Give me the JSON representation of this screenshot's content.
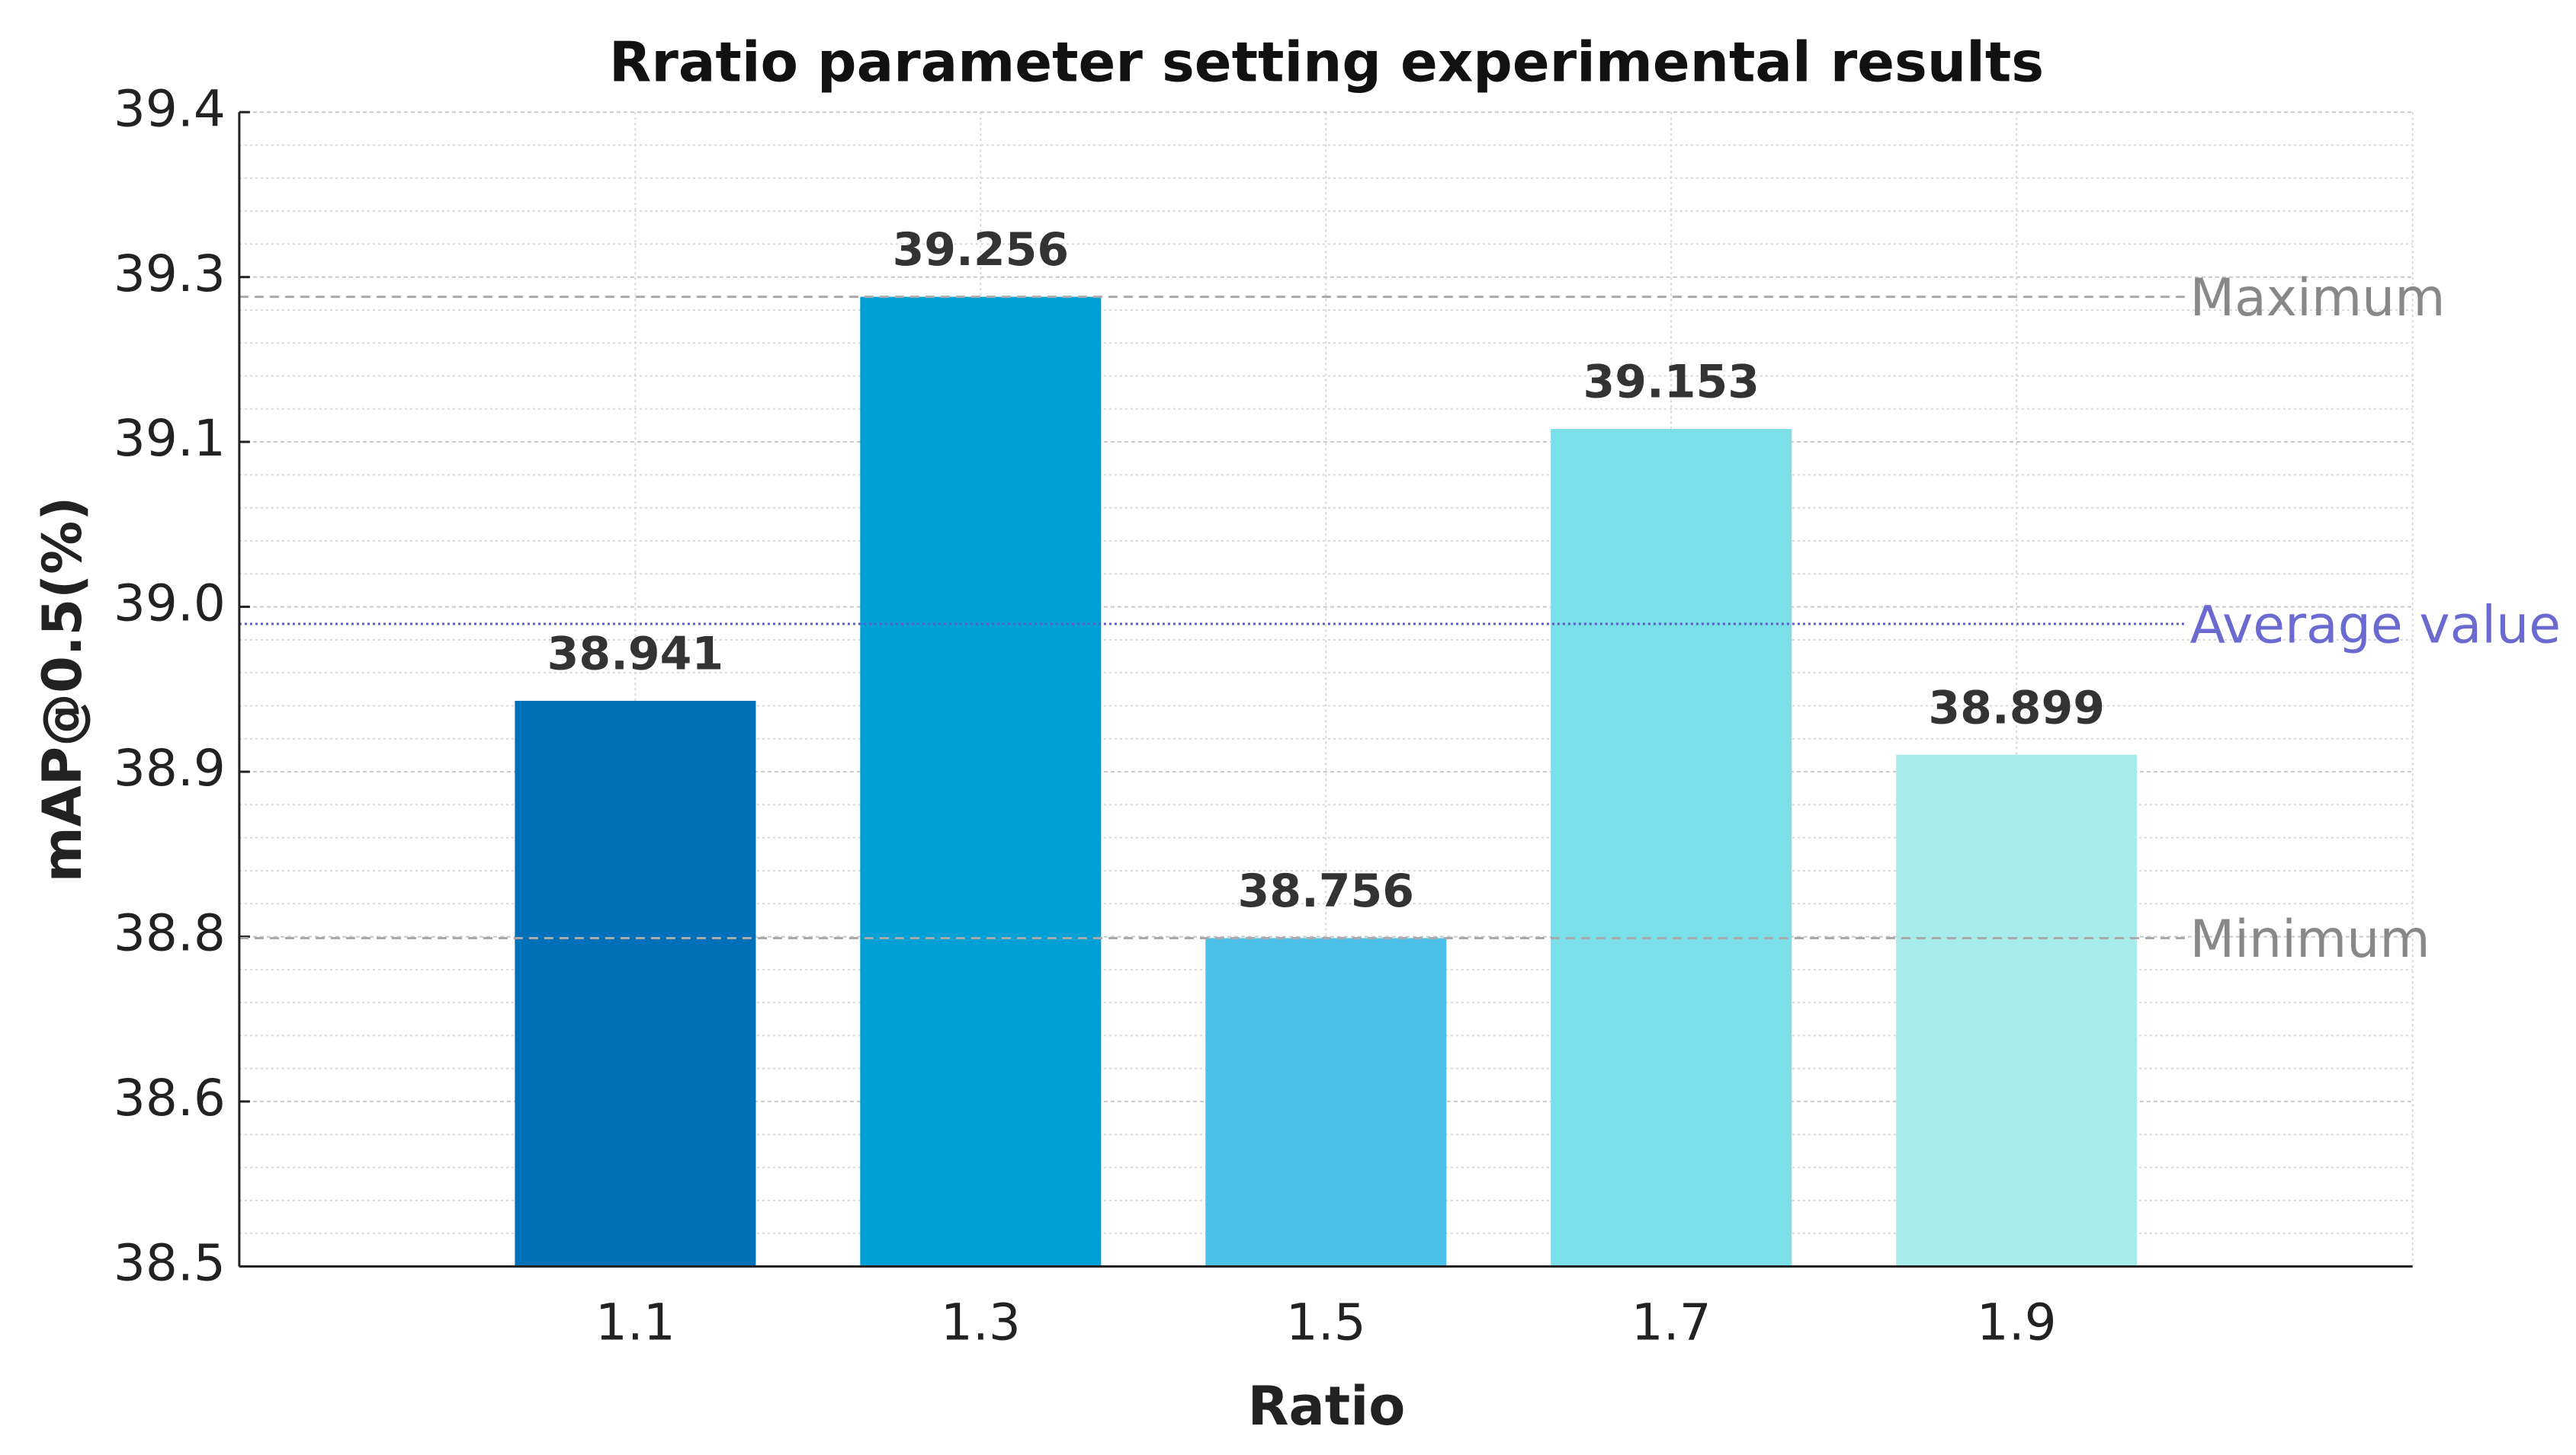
{
  "chart_data": {
    "type": "bar",
    "title": "Rratio parameter setting experimental results",
    "x_label": "Ratio",
    "y_label": "mAP@0.5(%)",
    "categories": [
      "1.1",
      "1.3",
      "1.5",
      "1.7",
      "1.9"
    ],
    "values": [
      38.941,
      39.256,
      38.756,
      39.153,
      38.899
    ],
    "colors": [
      "#0070b8",
      "#00a0d6",
      "#4cc0e8",
      "#7adfe8",
      "#a8ebeb"
    ],
    "ylim": [
      38.5,
      39.4
    ],
    "yticks": [
      38.5,
      {
        "value": 38.6286,
        "label": "38.6"
      },
      {
        "value": 38.7571,
        "label": "38.8"
      },
      {
        "value": 38.8857,
        "label": "38.9"
      },
      {
        "value": 39.0143,
        "label": "39.0"
      },
      {
        "value": 39.1429,
        "label": "39.1"
      },
      {
        "value": 39.2714,
        "label": "39.3"
      },
      39.4
    ],
    "grid": true,
    "minor_grid": 5,
    "reference_lines": [
      {
        "label": "Maximum",
        "value": 39.256,
        "color": "#aaaaaa",
        "dash": "dashed"
      },
      {
        "label": "Average value",
        "value": 39.001,
        "color": "#5a5acc",
        "dash": "dotted"
      },
      {
        "label": "Minimum",
        "value": 38.756,
        "color": "#aaaaaa",
        "dash": "dashed"
      }
    ]
  }
}
